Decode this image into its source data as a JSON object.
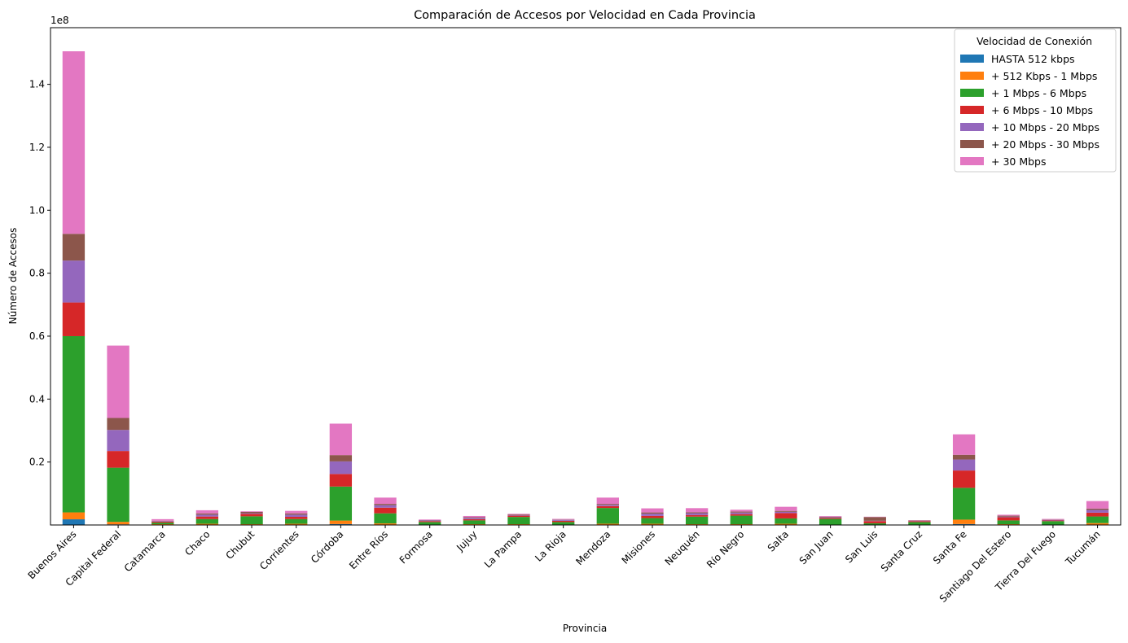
{
  "chart_data": {
    "type": "bar",
    "stacked": true,
    "title": "Comparación de Accesos por Velocidad en Cada Provincia",
    "xlabel": "Provincia",
    "ylabel": "Número de Accesos",
    "y_scale_label": "1e8",
    "y_multiplier": 100000000,
    "ylim": [
      0,
      1.58
    ],
    "yticks": [
      0.2,
      0.4,
      0.6,
      0.8,
      1.0,
      1.2,
      1.4
    ],
    "ytick_labels": [
      "0.2",
      "0.4",
      "0.6",
      "0.8",
      "1.0",
      "1.2",
      "1.4"
    ],
    "grid": false,
    "legend_position": "top-right",
    "legend_title": "Velocidad de Conexión",
    "categories": [
      "Buenos Aires",
      "Capital Federal",
      "Catamarca",
      "Chaco",
      "Chubut",
      "Corrientes",
      "Córdoba",
      "Entre Ríos",
      "Formosa",
      "Jujuy",
      "La Pampa",
      "La Rioja",
      "Mendoza",
      "Misiones",
      "Neuquén",
      "Río Negro",
      "Salta",
      "San Juan",
      "San Luis",
      "Santa Cruz",
      "Santa Fe",
      "Santiago Del Estero",
      "Tierra Del Fuego",
      "Tucumán"
    ],
    "series": [
      {
        "name": "HASTA 512 kbps",
        "color": "#1f77b4",
        "values": [
          0.018,
          0.002,
          0.0005,
          0.0008,
          0.0005,
          0.0008,
          0.003,
          0.001,
          0.0003,
          0.0005,
          0.0005,
          0.0003,
          0.001,
          0.0008,
          0.0005,
          0.0005,
          0.0008,
          0.0003,
          0.0003,
          0.0002,
          0.003,
          0.0005,
          0.0002,
          0.001
        ]
      },
      {
        "name": "+ 512 Kbps - 1 Mbps",
        "color": "#ff7f0e",
        "values": [
          0.022,
          0.008,
          0.002,
          0.003,
          0.002,
          0.003,
          0.011,
          0.004,
          0.001,
          0.002,
          0.002,
          0.001,
          0.003,
          0.003,
          0.002,
          0.002,
          0.003,
          0.001,
          0.001,
          0.001,
          0.014,
          0.002,
          0.001,
          0.005
        ]
      },
      {
        "name": "+ 1 Mbps - 6 Mbps",
        "color": "#2ca02c",
        "values": [
          0.56,
          0.172,
          0.005,
          0.015,
          0.025,
          0.015,
          0.108,
          0.032,
          0.008,
          0.012,
          0.023,
          0.008,
          0.05,
          0.018,
          0.024,
          0.027,
          0.017,
          0.018,
          0.004,
          0.008,
          0.101,
          0.012,
          0.011,
          0.021
        ]
      },
      {
        "name": "+ 6 Mbps - 10 Mbps",
        "color": "#d62728",
        "values": [
          0.107,
          0.053,
          0.003,
          0.008,
          0.008,
          0.007,
          0.04,
          0.018,
          0.003,
          0.004,
          0.004,
          0.004,
          0.006,
          0.007,
          0.005,
          0.005,
          0.017,
          0.003,
          0.007,
          0.003,
          0.055,
          0.01,
          0.002,
          0.012
        ]
      },
      {
        "name": "+ 10 Mbps - 20 Mbps",
        "color": "#9467bd",
        "values": [
          0.133,
          0.067,
          0.002,
          0.006,
          0.002,
          0.007,
          0.04,
          0.008,
          0.002,
          0.004,
          0.002,
          0.003,
          0.004,
          0.007,
          0.006,
          0.005,
          0.004,
          0.002,
          0.001,
          0.001,
          0.035,
          0.002,
          0.002,
          0.009
        ]
      },
      {
        "name": "+ 20 Mbps - 30 Mbps",
        "color": "#8c564b",
        "values": [
          0.085,
          0.038,
          0.001,
          0.004,
          0.004,
          0.004,
          0.02,
          0.004,
          0.001,
          0.002,
          0.002,
          0.001,
          0.003,
          0.004,
          0.003,
          0.003,
          0.003,
          0.002,
          0.012,
          0.001,
          0.015,
          0.003,
          0.001,
          0.004
        ]
      },
      {
        "name": "+ 30 Mbps",
        "color": "#e377c2",
        "values": [
          0.58,
          0.23,
          0.005,
          0.01,
          0.002,
          0.008,
          0.1,
          0.02,
          0.002,
          0.004,
          0.002,
          0.002,
          0.02,
          0.013,
          0.013,
          0.006,
          0.013,
          0.002,
          0.001,
          0.001,
          0.065,
          0.003,
          0.002,
          0.024
        ]
      }
    ]
  }
}
